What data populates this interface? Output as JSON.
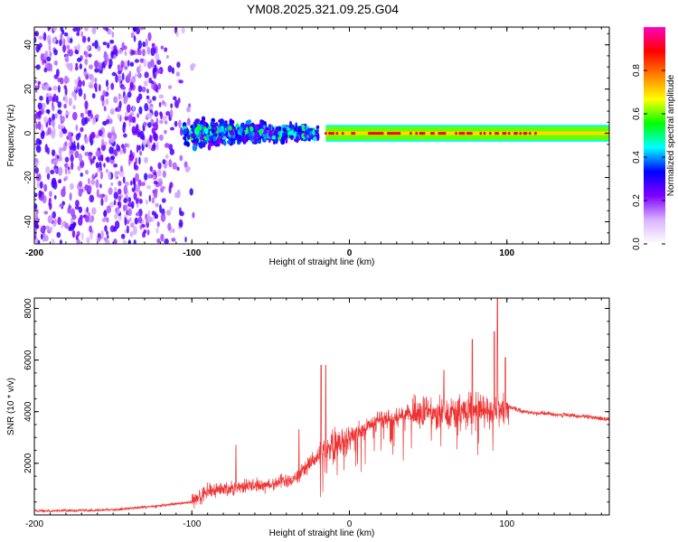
{
  "title": "YM08.2025.321.09.25.G04",
  "chart_data": [
    {
      "type": "heatmap",
      "xlabel": "Height of straight line (km)",
      "ylabel": "Frequency (Hz)",
      "xlim": [
        -200,
        165
      ],
      "ylim": [
        -50,
        48
      ],
      "x_ticks": [
        -200,
        -100,
        0,
        100
      ],
      "x_tick_labels": [
        "-200",
        "-100",
        "0",
        "100"
      ],
      "y_ticks": [
        -40,
        -20,
        0,
        20,
        40
      ],
      "y_tick_labels": [
        "-40",
        "-20",
        "0",
        "20",
        "40"
      ],
      "colorbar": {
        "label": "Normalized spectral amplitude",
        "range": [
          0,
          1
        ],
        "ticks": [
          0,
          0.2,
          0.4,
          0.6,
          0.8
        ],
        "tick_labels": [
          "0.0",
          "0.2",
          "0.4",
          "0.6",
          "0.8"
        ],
        "colors": [
          "#ffffff",
          "#d9b3ff",
          "#7f00ff",
          "#0000ff",
          "#00ffff",
          "#00ff00",
          "#ffff00",
          "#ff8000",
          "#ff0000",
          "#ff00c0"
        ]
      },
      "description_regions": [
        {
          "x_range": [
            -200,
            -95
          ],
          "freq_range": [
            -50,
            48
          ],
          "level": 0.25
        },
        {
          "x_range": [
            -105,
            -20
          ],
          "freq_range": [
            -10,
            10
          ],
          "level": 0.4
        },
        {
          "x_range": [
            -15,
            165
          ],
          "freq_range": [
            -3,
            3
          ],
          "level": 0.6
        },
        {
          "x_range": [
            -15,
            165
          ],
          "freq_range": [
            -0.8,
            0.8
          ],
          "level": 0.9
        }
      ]
    },
    {
      "type": "line",
      "xlabel": "Height of straight line (km)",
      "ylabel": "SNR (10 * v/v)",
      "xlim": [
        -200,
        165
      ],
      "ylim": [
        0,
        8400
      ],
      "x_ticks": [
        -200,
        -100,
        0,
        100
      ],
      "x_tick_labels": [
        "-200",
        "-100",
        "0",
        "100"
      ],
      "y_ticks": [
        2000,
        4000,
        6000,
        8000
      ],
      "y_tick_labels": [
        "2000",
        "4000",
        "6000",
        "8000"
      ],
      "line_color": "#ee3333",
      "envelope_points": [
        {
          "x": -200,
          "y": 150
        },
        {
          "x": -150,
          "y": 200
        },
        {
          "x": -120,
          "y": 350
        },
        {
          "x": -100,
          "y": 500
        },
        {
          "x": -90,
          "y": 900
        },
        {
          "x": -70,
          "y": 1100
        },
        {
          "x": -50,
          "y": 1200
        },
        {
          "x": -35,
          "y": 1400
        },
        {
          "x": -25,
          "y": 2000
        },
        {
          "x": -15,
          "y": 2600
        },
        {
          "x": 0,
          "y": 3000
        },
        {
          "x": 20,
          "y": 3700
        },
        {
          "x": 40,
          "y": 3900
        },
        {
          "x": 60,
          "y": 4000
        },
        {
          "x": 80,
          "y": 4050
        },
        {
          "x": 95,
          "y": 4100
        },
        {
          "x": 101,
          "y": 4200
        },
        {
          "x": 110,
          "y": 4000
        },
        {
          "x": 130,
          "y": 3900
        },
        {
          "x": 150,
          "y": 3800
        },
        {
          "x": 165,
          "y": 3700
        }
      ],
      "peaks": [
        {
          "x": -72,
          "y": 2700
        },
        {
          "x": -32,
          "y": 3300
        },
        {
          "x": -18,
          "y": 5800
        },
        {
          "x": -15,
          "y": 5800
        },
        {
          "x": 60,
          "y": 5600
        },
        {
          "x": 78,
          "y": 6800
        },
        {
          "x": 92,
          "y": 7100
        },
        {
          "x": 94,
          "y": 8400
        },
        {
          "x": 99,
          "y": 6100
        }
      ]
    }
  ]
}
